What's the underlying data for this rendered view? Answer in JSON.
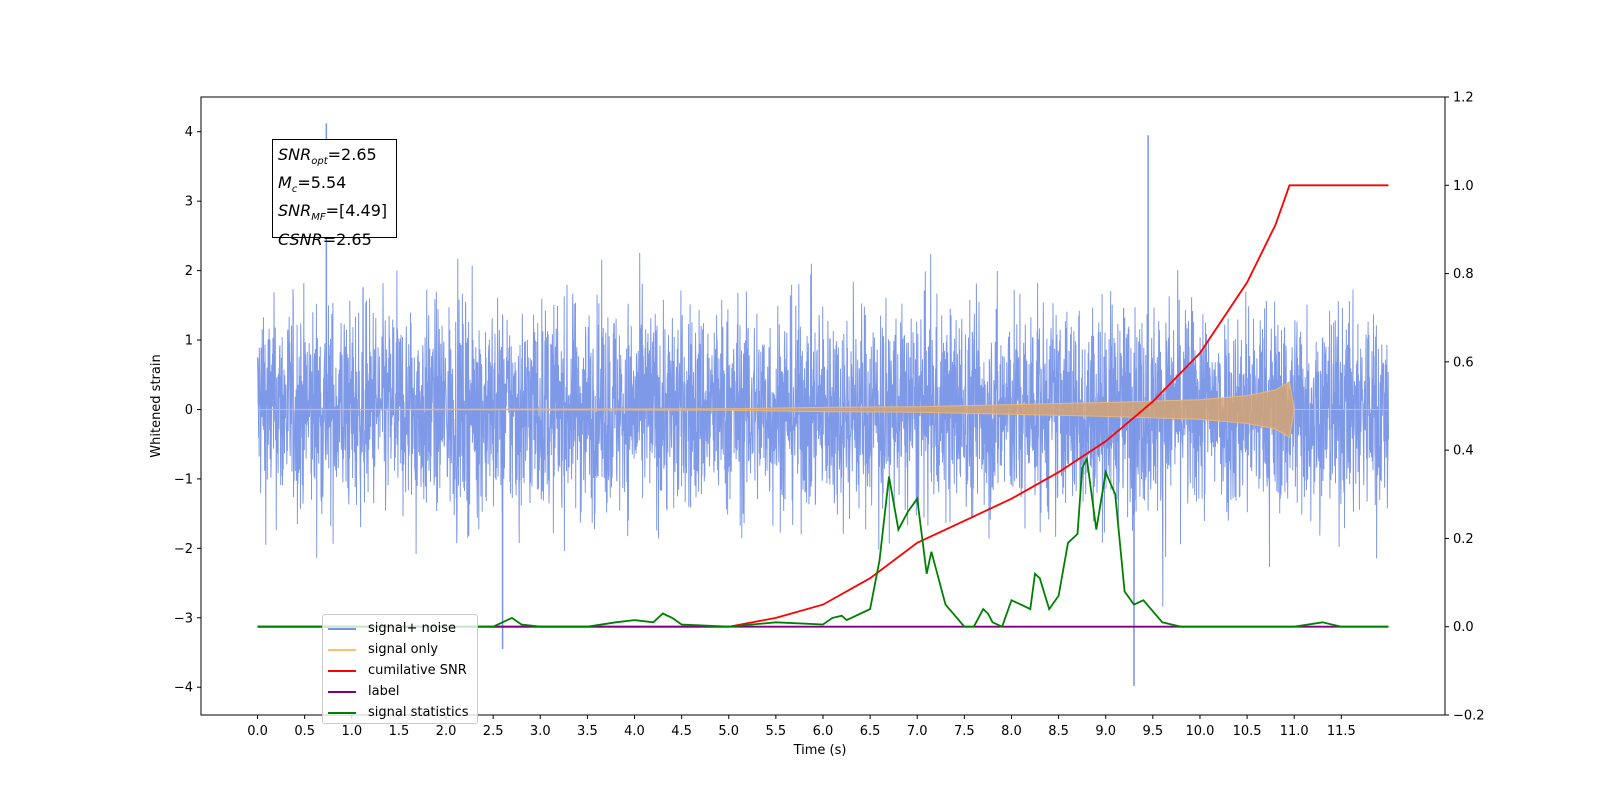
{
  "chart_data": {
    "type": "line",
    "xlabel": "Time (s)",
    "ylabel": "Whitened strain",
    "xlim": [
      -0.6,
      12.6
    ],
    "ylim_left": [
      -4.4,
      4.5
    ],
    "ylim_right": [
      -0.2,
      1.2
    ],
    "x_ticks": [
      "0.0",
      "0.5",
      "1.0",
      "1.5",
      "2.0",
      "2.5",
      "3.0",
      "3.5",
      "4.0",
      "4.5",
      "5.0",
      "5.5",
      "6.0",
      "6.5",
      "7.0",
      "7.5",
      "8.0",
      "8.5",
      "9.0",
      "9.5",
      "10.0",
      "10.5",
      "11.0",
      "11.5"
    ],
    "y_ticks_left": [
      "4",
      "3",
      "2",
      "1",
      "0",
      "−1",
      "−2",
      "−3",
      "−4"
    ],
    "y_ticks_right": [
      "1.2",
      "1.0",
      "0.8",
      "0.6",
      "0.4",
      "0.2",
      "0.0",
      "−0.2"
    ],
    "grid": false,
    "legend_position": "lower-left",
    "annotation": {
      "snr_opt": "=2.65",
      "mc": "=5.54",
      "snr_mf": "=[4.49]",
      "csnr": "=2.65"
    },
    "series": [
      {
        "name": "signal+ noise",
        "color": "#7894e8",
        "axis": "left",
        "description_points": {
          "x_range": [
            0,
            12
          ],
          "amplitude": 1.6,
          "max_spikes": [
            [
              0.73,
              4.12
            ],
            [
              9.45,
              3.95
            ],
            [
              9.3,
              -3.98
            ],
            [
              2.6,
              -3.45
            ]
          ]
        }
      },
      {
        "name": "signal only",
        "color": "#fdbf6f",
        "axis": "left",
        "envelope": [
          [
            0,
            0.0
          ],
          [
            5.0,
            0.01
          ],
          [
            6.0,
            0.03
          ],
          [
            7.0,
            0.04
          ],
          [
            8.0,
            0.07
          ],
          [
            9.0,
            0.1
          ],
          [
            10.0,
            0.14
          ],
          [
            10.5,
            0.2
          ],
          [
            10.8,
            0.28
          ],
          [
            10.95,
            0.4
          ],
          [
            11.0,
            0.0
          ],
          [
            12.0,
            0.0
          ]
        ]
      },
      {
        "name": "cumilative SNR",
        "color": "#ff0000",
        "axis": "right",
        "x": [
          0,
          4.5,
          5.0,
          5.5,
          6.0,
          6.5,
          7.0,
          7.5,
          8.0,
          8.5,
          9.0,
          9.5,
          10.0,
          10.5,
          10.8,
          10.95,
          11.0,
          12.0
        ],
        "y": [
          0.0,
          0.0,
          0.0,
          0.02,
          0.05,
          0.11,
          0.19,
          0.24,
          0.29,
          0.35,
          0.42,
          0.51,
          0.62,
          0.78,
          0.91,
          1.0,
          1.0,
          1.0
        ]
      },
      {
        "name": "label",
        "color": "#800080",
        "axis": "right",
        "x": [
          0,
          12
        ],
        "y": [
          0.0,
          0.0
        ]
      },
      {
        "name": "signal statistics",
        "color": "#008000",
        "axis": "right",
        "x": [
          0,
          2.5,
          2.6,
          2.7,
          2.8,
          3.0,
          3.5,
          3.8,
          4.0,
          4.2,
          4.3,
          4.4,
          4.5,
          5.0,
          5.5,
          6.0,
          6.1,
          6.2,
          6.25,
          6.3,
          6.4,
          6.5,
          6.6,
          6.7,
          6.8,
          6.9,
          7.0,
          7.1,
          7.15,
          7.2,
          7.3,
          7.5,
          7.6,
          7.7,
          7.75,
          7.8,
          7.9,
          8.0,
          8.1,
          8.2,
          8.25,
          8.3,
          8.4,
          8.5,
          8.6,
          8.7,
          8.75,
          8.8,
          8.9,
          9.0,
          9.1,
          9.2,
          9.3,
          9.4,
          9.6,
          9.8,
          10.0,
          10.5,
          11.0,
          11.3,
          11.5,
          12.0
        ],
        "y": [
          0.0,
          0.0,
          0.01,
          0.02,
          0.005,
          0.0,
          0.0,
          0.01,
          0.015,
          0.01,
          0.03,
          0.02,
          0.005,
          0.0,
          0.01,
          0.005,
          0.02,
          0.025,
          0.015,
          0.02,
          0.03,
          0.04,
          0.15,
          0.34,
          0.22,
          0.26,
          0.29,
          0.12,
          0.17,
          0.13,
          0.05,
          0.0,
          0.0,
          0.04,
          0.03,
          0.01,
          0.0,
          0.06,
          0.05,
          0.04,
          0.12,
          0.11,
          0.04,
          0.07,
          0.19,
          0.21,
          0.36,
          0.38,
          0.22,
          0.35,
          0.3,
          0.08,
          0.05,
          0.06,
          0.01,
          0.0,
          0.0,
          0.0,
          0.0,
          0.01,
          0.0,
          0.0
        ]
      }
    ]
  }
}
